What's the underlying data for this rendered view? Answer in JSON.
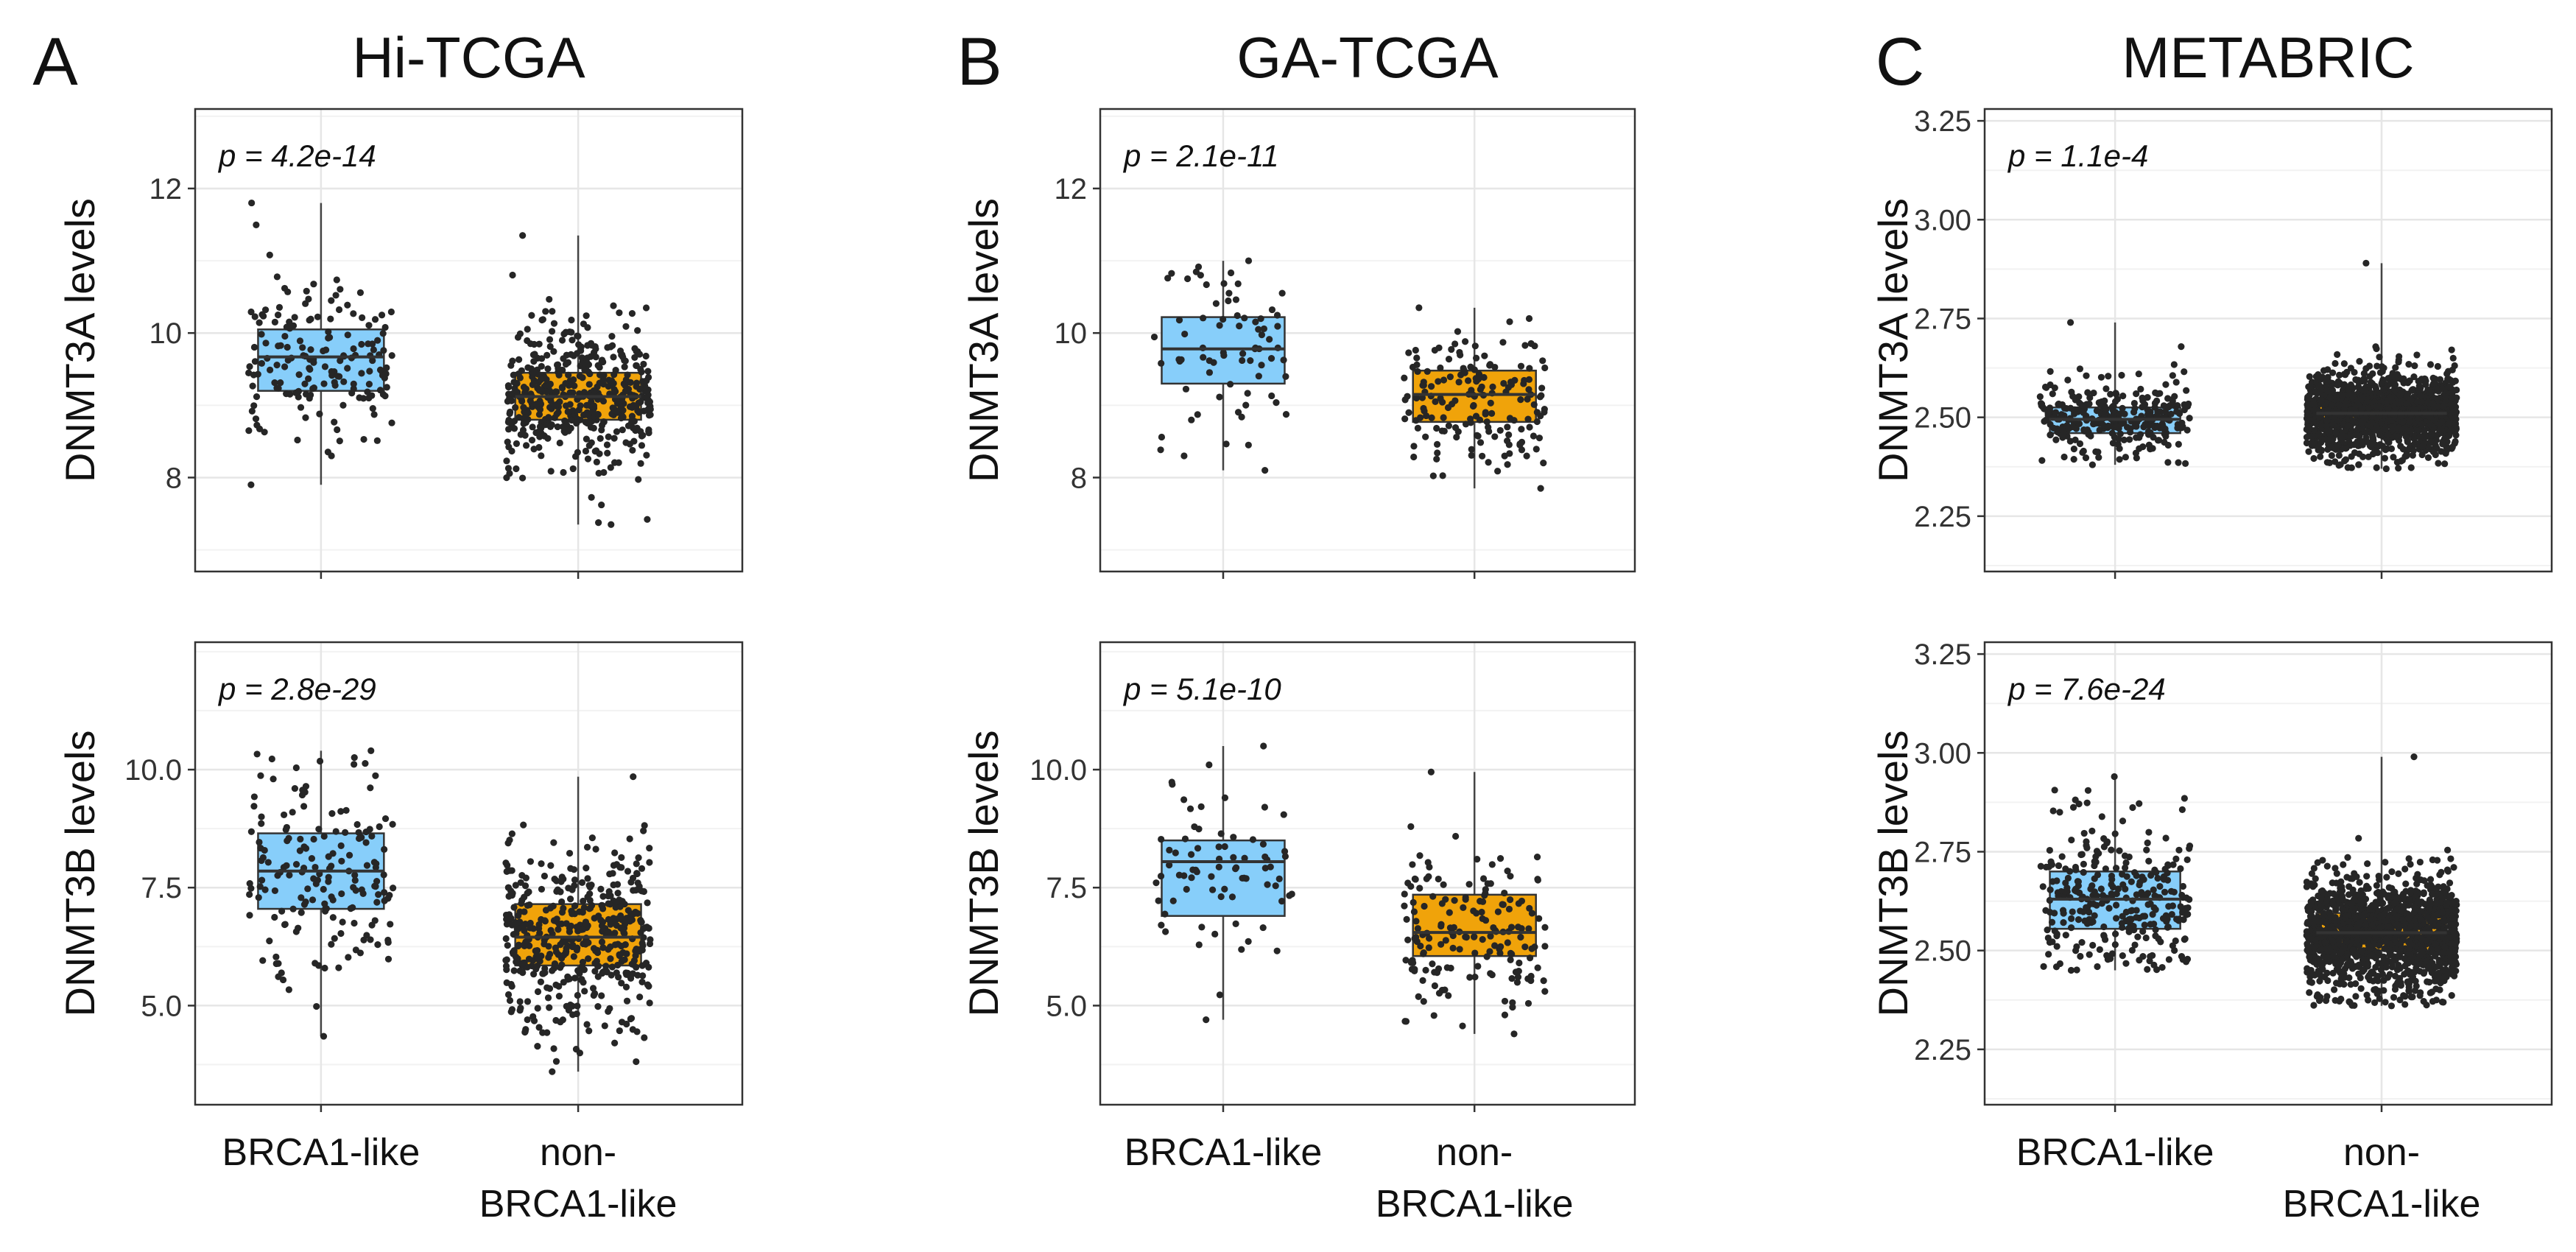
{
  "figure": {
    "panels": [
      {
        "letter": "A",
        "title": "Hi-TCGA"
      },
      {
        "letter": "B",
        "title": "GA-TCGA"
      },
      {
        "letter": "C",
        "title": "METABRIC"
      }
    ],
    "x_categories": [
      {
        "line1": "BRCA1-like",
        "line2": ""
      },
      {
        "line1": "non-",
        "line2": "BRCA1-like"
      }
    ]
  },
  "colors": {
    "brca1_like_box": "#87CEFA",
    "non_brca1_like_box": "#F0A30A",
    "points": "#262626",
    "panel_border": "#333333",
    "grid_major": "#E6E6E6",
    "grid_minor": "#F2F2F2"
  },
  "chart_data": [
    {
      "type": "box",
      "panel": "A",
      "title": "Hi-TCGA",
      "ylabel": "DNMT3A levels",
      "p_value_label": "p = 4.2e-14",
      "categories": [
        "BRCA1-like",
        "non-BRCA1-like"
      ],
      "ylim": [
        6.7,
        13.1
      ],
      "yticks": [
        8,
        10,
        12
      ],
      "ytick_labels": [
        "8",
        "10",
        "12"
      ],
      "series": [
        {
          "name": "BRCA1-like",
          "n": 170,
          "min": 7.9,
          "q1": 9.2,
          "median": 9.67,
          "q3": 10.05,
          "max": 11.8
        },
        {
          "name": "non-BRCA1-like",
          "n": 470,
          "min": 7.35,
          "q1": 8.8,
          "median": 9.12,
          "q3": 9.45,
          "max": 11.35
        }
      ]
    },
    {
      "type": "box",
      "panel": "A",
      "title": "Hi-TCGA",
      "ylabel": "DNMT3B levels",
      "p_value_label": "p = 2.8e-29",
      "categories": [
        "BRCA1-like",
        "non-BRCA1-like"
      ],
      "ylim": [
        2.9,
        12.7
      ],
      "yticks": [
        5.0,
        7.5,
        10.0
      ],
      "ytick_labels": [
        "5.0",
        "7.5",
        "10.0"
      ],
      "series": [
        {
          "name": "BRCA1-like",
          "n": 170,
          "min": 4.35,
          "q1": 7.05,
          "median": 7.85,
          "q3": 8.65,
          "max": 10.4
        },
        {
          "name": "non-BRCA1-like",
          "n": 470,
          "min": 3.6,
          "q1": 5.85,
          "median": 6.45,
          "q3": 7.15,
          "max": 9.85
        }
      ]
    },
    {
      "type": "box",
      "panel": "B",
      "title": "GA-TCGA",
      "ylabel": "DNMT3A levels",
      "p_value_label": "p = 2.1e-11",
      "categories": [
        "BRCA1-like",
        "non-BRCA1-like"
      ],
      "ylim": [
        6.7,
        13.1
      ],
      "yticks": [
        8,
        10,
        12
      ],
      "ytick_labels": [
        "8",
        "10",
        "12"
      ],
      "series": [
        {
          "name": "BRCA1-like",
          "n": 75,
          "min": 8.1,
          "q1": 9.3,
          "median": 9.78,
          "q3": 10.22,
          "max": 11.0
        },
        {
          "name": "non-BRCA1-like",
          "n": 170,
          "min": 7.85,
          "q1": 8.77,
          "median": 9.15,
          "q3": 9.48,
          "max": 10.35
        }
      ]
    },
    {
      "type": "box",
      "panel": "B",
      "title": "GA-TCGA",
      "ylabel": "DNMT3B levels",
      "p_value_label": "p = 5.1e-10",
      "categories": [
        "BRCA1-like",
        "non-BRCA1-like"
      ],
      "ylim": [
        2.9,
        12.7
      ],
      "yticks": [
        5.0,
        7.5,
        10.0
      ],
      "ytick_labels": [
        "5.0",
        "7.5",
        "10.0"
      ],
      "series": [
        {
          "name": "BRCA1-like",
          "n": 75,
          "min": 4.7,
          "q1": 6.9,
          "median": 8.05,
          "q3": 8.5,
          "max": 10.5
        },
        {
          "name": "non-BRCA1-like",
          "n": 170,
          "min": 4.4,
          "q1": 6.05,
          "median": 6.55,
          "q3": 7.35,
          "max": 9.95
        }
      ]
    },
    {
      "type": "box",
      "panel": "C",
      "title": "METABRIC",
      "ylabel": "DNMT3A levels",
      "p_value_label": "p = 1.1e-4",
      "categories": [
        "BRCA1-like",
        "non-BRCA1-like"
      ],
      "ylim": [
        2.11,
        3.28
      ],
      "yticks": [
        2.25,
        2.5,
        2.75,
        3.0,
        3.25
      ],
      "ytick_labels": [
        "2.25",
        "2.50",
        "2.75",
        "3.00",
        "3.25"
      ],
      "series": [
        {
          "name": "BRCA1-like",
          "n": 300,
          "min": 2.38,
          "q1": 2.46,
          "median": 2.495,
          "q3": 2.525,
          "max": 2.74
        },
        {
          "name": "non-BRCA1-like",
          "n": 1400,
          "min": 2.37,
          "q1": 2.48,
          "median": 2.51,
          "q3": 2.55,
          "max": 2.89
        }
      ]
    },
    {
      "type": "box",
      "panel": "C",
      "title": "METABRIC",
      "ylabel": "DNMT3B levels",
      "p_value_label": "p = 7.6e-24",
      "categories": [
        "BRCA1-like",
        "non-BRCA1-like"
      ],
      "ylim": [
        2.11,
        3.28
      ],
      "yticks": [
        2.25,
        2.5,
        2.75,
        3.0,
        3.25
      ],
      "ytick_labels": [
        "2.25",
        "2.50",
        "2.75",
        "3.00",
        "3.25"
      ],
      "series": [
        {
          "name": "BRCA1-like",
          "n": 300,
          "min": 2.45,
          "q1": 2.555,
          "median": 2.63,
          "q3": 2.7,
          "max": 2.94
        },
        {
          "name": "non-BRCA1-like",
          "n": 1400,
          "min": 2.36,
          "q1": 2.5,
          "median": 2.545,
          "q3": 2.595,
          "max": 2.99
        }
      ]
    }
  ]
}
